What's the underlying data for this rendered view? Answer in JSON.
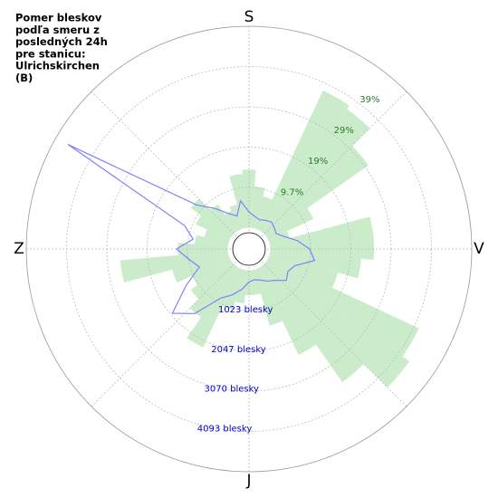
{
  "chart_data": {
    "type": "polar",
    "title_lines": [
      "Pomer bleskov",
      "podľa smeru z",
      "posledných 24h",
      "pre stanicu:",
      "Ulrichskirchen",
      "(B)"
    ],
    "directions": [
      "S",
      "V",
      "J",
      "Z"
    ],
    "theta": [
      0,
      10,
      20,
      30,
      40,
      50,
      60,
      70,
      80,
      90,
      100,
      110,
      120,
      130,
      140,
      150,
      160,
      170,
      180,
      190,
      200,
      210,
      220,
      230,
      240,
      250,
      260,
      270,
      280,
      290,
      300,
      310,
      320,
      330,
      340,
      350
    ],
    "series": [
      {
        "type": "bar",
        "color": "#a8e0a8",
        "values": [
          14,
          10,
          8,
          37,
          36,
          30,
          12,
          5,
          25,
          25,
          22,
          17,
          40,
          42,
          34,
          23,
          14,
          6,
          6,
          8,
          10,
          21,
          15,
          12,
          10,
          14,
          26,
          12,
          8,
          6,
          9,
          12,
          8,
          5,
          6,
          13
        ]
      },
      {
        "type": "line",
        "color": "#8080ff",
        "values": [
          400,
          300,
          250,
          300,
          350,
          300,
          250,
          400,
          700,
          1000,
          1150,
          700,
          600,
          700,
          500,
          400,
          300,
          250,
          300,
          500,
          700,
          900,
          1600,
          2000,
          1300,
          800,
          1000,
          1300,
          900,
          1200,
          4770,
          1200,
          800,
          500,
          350,
          700
        ]
      }
    ],
    "rlim": [
      0,
      48.5
    ],
    "rticks": [
      {
        "value": 9.7,
        "label": "9.7%"
      },
      {
        "value": 19.4,
        "label": "19%"
      },
      {
        "value": 29.1,
        "label": "29%"
      },
      {
        "value": 38.8,
        "label": "39%"
      }
    ],
    "r2lim": [
      0,
      5116
    ],
    "r2ticks": [
      {
        "value": 1023,
        "label": "1023 blesky"
      },
      {
        "value": 2047,
        "label": "2047 blesky"
      },
      {
        "value": 3070,
        "label": "3070 blesky"
      },
      {
        "value": 4093,
        "label": "4093 blesky"
      }
    ]
  }
}
